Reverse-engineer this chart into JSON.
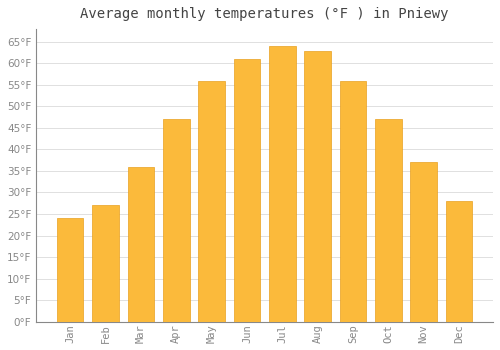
{
  "title": "Average monthly temperatures (°F ) in Pniewy",
  "months": [
    "Jan",
    "Feb",
    "Mar",
    "Apr",
    "May",
    "Jun",
    "Jul",
    "Aug",
    "Sep",
    "Oct",
    "Nov",
    "Dec"
  ],
  "values": [
    24,
    27,
    36,
    47,
    56,
    61,
    64,
    63,
    56,
    47,
    37,
    28
  ],
  "bar_color": "#FBBA3B",
  "bar_color_inner": "#FFC84A",
  "bar_edge_color": "#E8A020",
  "background_color": "#FFFFFF",
  "grid_color": "#E0E0E0",
  "text_color": "#888888",
  "title_color": "#444444",
  "spine_color": "#888888",
  "ylim": [
    0,
    68
  ],
  "yticks": [
    0,
    5,
    10,
    15,
    20,
    25,
    30,
    35,
    40,
    45,
    50,
    55,
    60,
    65
  ],
  "title_fontsize": 10,
  "tick_fontsize": 7.5
}
